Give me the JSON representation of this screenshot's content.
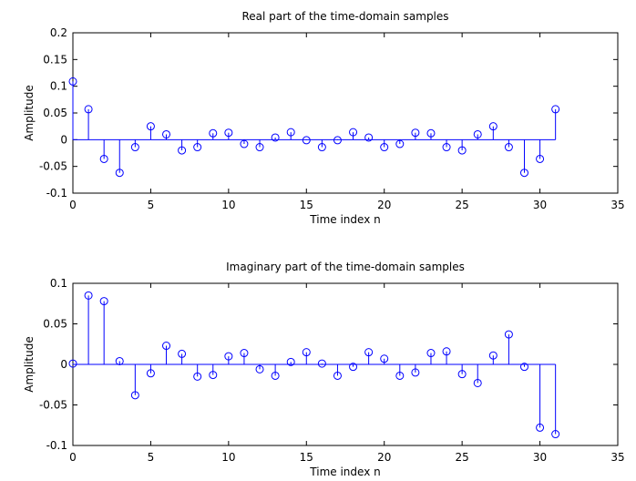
{
  "chart_data": [
    {
      "type": "stem",
      "title": "Real part of the time-domain samples",
      "xlabel": "Time index n",
      "ylabel": "Amplitude",
      "xlim": [
        0,
        35
      ],
      "ylim": [
        -0.1,
        0.2
      ],
      "xticks": [
        0,
        5,
        10,
        15,
        20,
        25,
        30,
        35
      ],
      "xtick_labels": [
        "0",
        "5",
        "10",
        "15",
        "20",
        "25",
        "30",
        "35"
      ],
      "yticks": [
        -0.1,
        -0.05,
        0,
        0.05,
        0.1,
        0.15,
        0.2
      ],
      "ytick_labels": [
        "-0.1",
        "-0.05",
        "0",
        "0.05",
        "0.1",
        "0.15",
        "0.2"
      ],
      "grid": false,
      "color": "#0000ff",
      "x": [
        0,
        1,
        2,
        3,
        4,
        5,
        6,
        7,
        8,
        9,
        10,
        11,
        12,
        13,
        14,
        15,
        16,
        17,
        18,
        19,
        20,
        21,
        22,
        23,
        24,
        25,
        26,
        27,
        28,
        29,
        30,
        31
      ],
      "values": [
        0.109,
        0.057,
        -0.036,
        -0.062,
        -0.014,
        0.025,
        0.01,
        -0.02,
        -0.014,
        0.012,
        0.013,
        -0.008,
        -0.014,
        0.004,
        0.014,
        -0.001,
        -0.014,
        -0.001,
        0.014,
        0.004,
        -0.014,
        -0.008,
        0.013,
        0.012,
        -0.014,
        -0.02,
        0.01,
        0.025,
        -0.014,
        -0.062,
        -0.036,
        0.057
      ]
    },
    {
      "type": "stem",
      "title": "Imaginary part of the time-domain samples",
      "xlabel": "Time index n",
      "ylabel": "Amplitude",
      "xlim": [
        0,
        35
      ],
      "ylim": [
        -0.1,
        0.1
      ],
      "xticks": [
        0,
        5,
        10,
        15,
        20,
        25,
        30,
        35
      ],
      "xtick_labels": [
        "0",
        "5",
        "10",
        "15",
        "20",
        "25",
        "30",
        "35"
      ],
      "yticks": [
        -0.1,
        -0.05,
        0,
        0.05,
        0.1
      ],
      "ytick_labels": [
        "-0.1",
        "-0.05",
        "0",
        "0.05",
        "0.1"
      ],
      "grid": false,
      "color": "#0000ff",
      "x": [
        0,
        1,
        2,
        3,
        4,
        5,
        6,
        7,
        8,
        9,
        10,
        11,
        12,
        13,
        14,
        15,
        16,
        17,
        18,
        19,
        20,
        21,
        22,
        23,
        24,
        25,
        26,
        27,
        28,
        29,
        30,
        31
      ],
      "values": [
        0.001,
        0.085,
        0.078,
        0.004,
        -0.038,
        -0.011,
        0.023,
        0.013,
        -0.015,
        -0.013,
        0.01,
        0.014,
        -0.006,
        -0.014,
        0.003,
        0.015,
        0.001,
        -0.014,
        -0.003,
        0.015,
        0.007,
        -0.014,
        -0.01,
        0.014,
        0.016,
        -0.012,
        -0.023,
        0.011,
        0.037,
        -0.003,
        -0.078,
        -0.086
      ]
    }
  ]
}
